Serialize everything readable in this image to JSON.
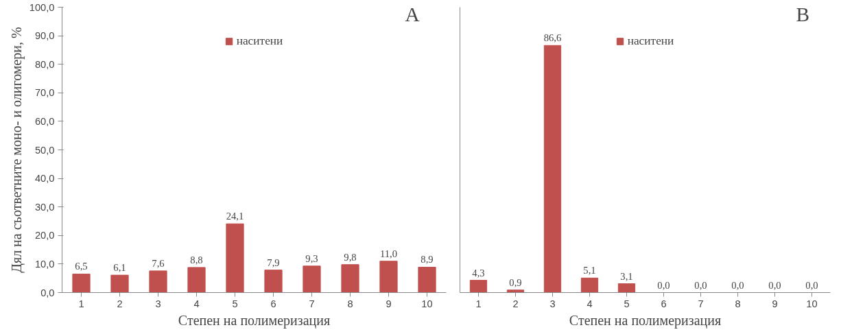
{
  "chart_data": [
    {
      "type": "bar",
      "xlabel": "Степен на полимеризация",
      "ylabel": "Дял на съответните моно- и олигомери, %",
      "categories": [
        "1",
        "2",
        "3",
        "4",
        "5",
        "6",
        "7",
        "8",
        "9",
        "10"
      ],
      "series": [
        {
          "name": "наситени",
          "color": "#c0504d",
          "values": [
            6.5,
            6.1,
            7.6,
            8.8,
            24.1,
            7.9,
            9.3,
            9.8,
            11.0,
            8.9
          ],
          "value_labels": [
            "6,5",
            "6,1",
            "7,6",
            "8,8",
            "24,1",
            "7,9",
            "9,3",
            "9,8",
            "11,0",
            "8,9"
          ]
        }
      ],
      "ylim": [
        0,
        100
      ],
      "yticks": [
        {
          "value": 0,
          "label": "0,0"
        },
        {
          "value": 10,
          "label": "10,0"
        },
        {
          "value": 20,
          "label": "20,0"
        },
        {
          "value": 30,
          "label": "30,0"
        },
        {
          "value": 40,
          "label": "40,0"
        },
        {
          "value": 50,
          "label": "50,0"
        },
        {
          "value": 60,
          "label": "60,0"
        },
        {
          "value": 70,
          "label": "70,0"
        },
        {
          "value": 80,
          "label": "80,0"
        },
        {
          "value": 90,
          "label": "90,0"
        },
        {
          "value": 100,
          "label": "100,0"
        }
      ],
      "annotations": [
        "A"
      ],
      "legend": "top",
      "grid": false
    },
    {
      "type": "bar",
      "xlabel": "Степен на полимеризация",
      "categories": [
        "1",
        "2",
        "3",
        "4",
        "5",
        "6",
        "7",
        "8",
        "9",
        "10"
      ],
      "series": [
        {
          "name": "наситени",
          "color": "#c0504d",
          "values": [
            4.3,
            0.9,
            86.6,
            5.1,
            3.1,
            0.0,
            0.0,
            0.0,
            0.0,
            0.0
          ],
          "value_labels": [
            "4,3",
            "0,9",
            "86,6",
            "5,1",
            "3,1",
            "0,0",
            "0,0",
            "0,0",
            "0,0",
            "0,0"
          ]
        }
      ],
      "ylim": [
        0,
        100
      ],
      "tick_labels": "x",
      "annotations": [
        "B"
      ],
      "legend": "top",
      "grid": false
    }
  ]
}
